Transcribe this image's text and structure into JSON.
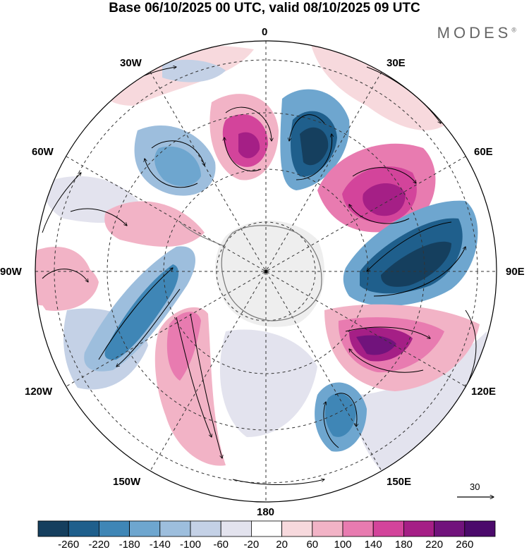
{
  "title": "Base 06/10/2025 00 UTC, valid 08/10/2025 09 UTC",
  "brand": "MODES",
  "brand_mark": "®",
  "longitude_labels": {
    "lon_0": "0",
    "lon_30e": "30E",
    "lon_60e": "60E",
    "lon_90e": "90E",
    "lon_120e": "120E",
    "lon_150e": "150E",
    "lon_180": "180",
    "lon_150w": "150W",
    "lon_120w": "120W",
    "lon_90w": "90W",
    "lon_60w": "60W",
    "lon_30w": "30W"
  },
  "reference_vector": {
    "label": "30"
  },
  "colorbar": {
    "ticks": [
      "-260",
      "-220",
      "-180",
      "-140",
      "-100",
      "-60",
      "-20",
      "20",
      "60",
      "100",
      "140",
      "180",
      "220",
      "260"
    ],
    "colors": [
      "#153f5e",
      "#1f5f8c",
      "#3f86b6",
      "#6ea6cf",
      "#9dbedd",
      "#c4d1e6",
      "#e3e3ee",
      "#ffffff",
      "#f7d9dd",
      "#f2b3c6",
      "#e87bb0",
      "#d3449b",
      "#a51f86",
      "#71137c",
      "#4b0a6b"
    ]
  },
  "anomaly_regions": [
    {
      "name": "blue-30w-60s",
      "color": "#6ea6cf"
    },
    {
      "name": "magenta-10w",
      "color": "#d3449b"
    },
    {
      "name": "dark-blue-20e",
      "color": "#153f5e"
    },
    {
      "name": "magenta-50e",
      "color": "#a51f86"
    },
    {
      "name": "dark-blue-80e",
      "color": "#1f5f8c"
    },
    {
      "name": "magenta-110e",
      "color": "#71137c"
    },
    {
      "name": "blue-140e",
      "color": "#3f86b6"
    },
    {
      "name": "blue-100w",
      "color": "#3f86b6"
    },
    {
      "name": "pink-130w",
      "color": "#e87bb0"
    },
    {
      "name": "pink-90w",
      "color": "#f2b3c6"
    },
    {
      "name": "pink-150w-belt",
      "color": "#f2b3c6"
    }
  ]
}
